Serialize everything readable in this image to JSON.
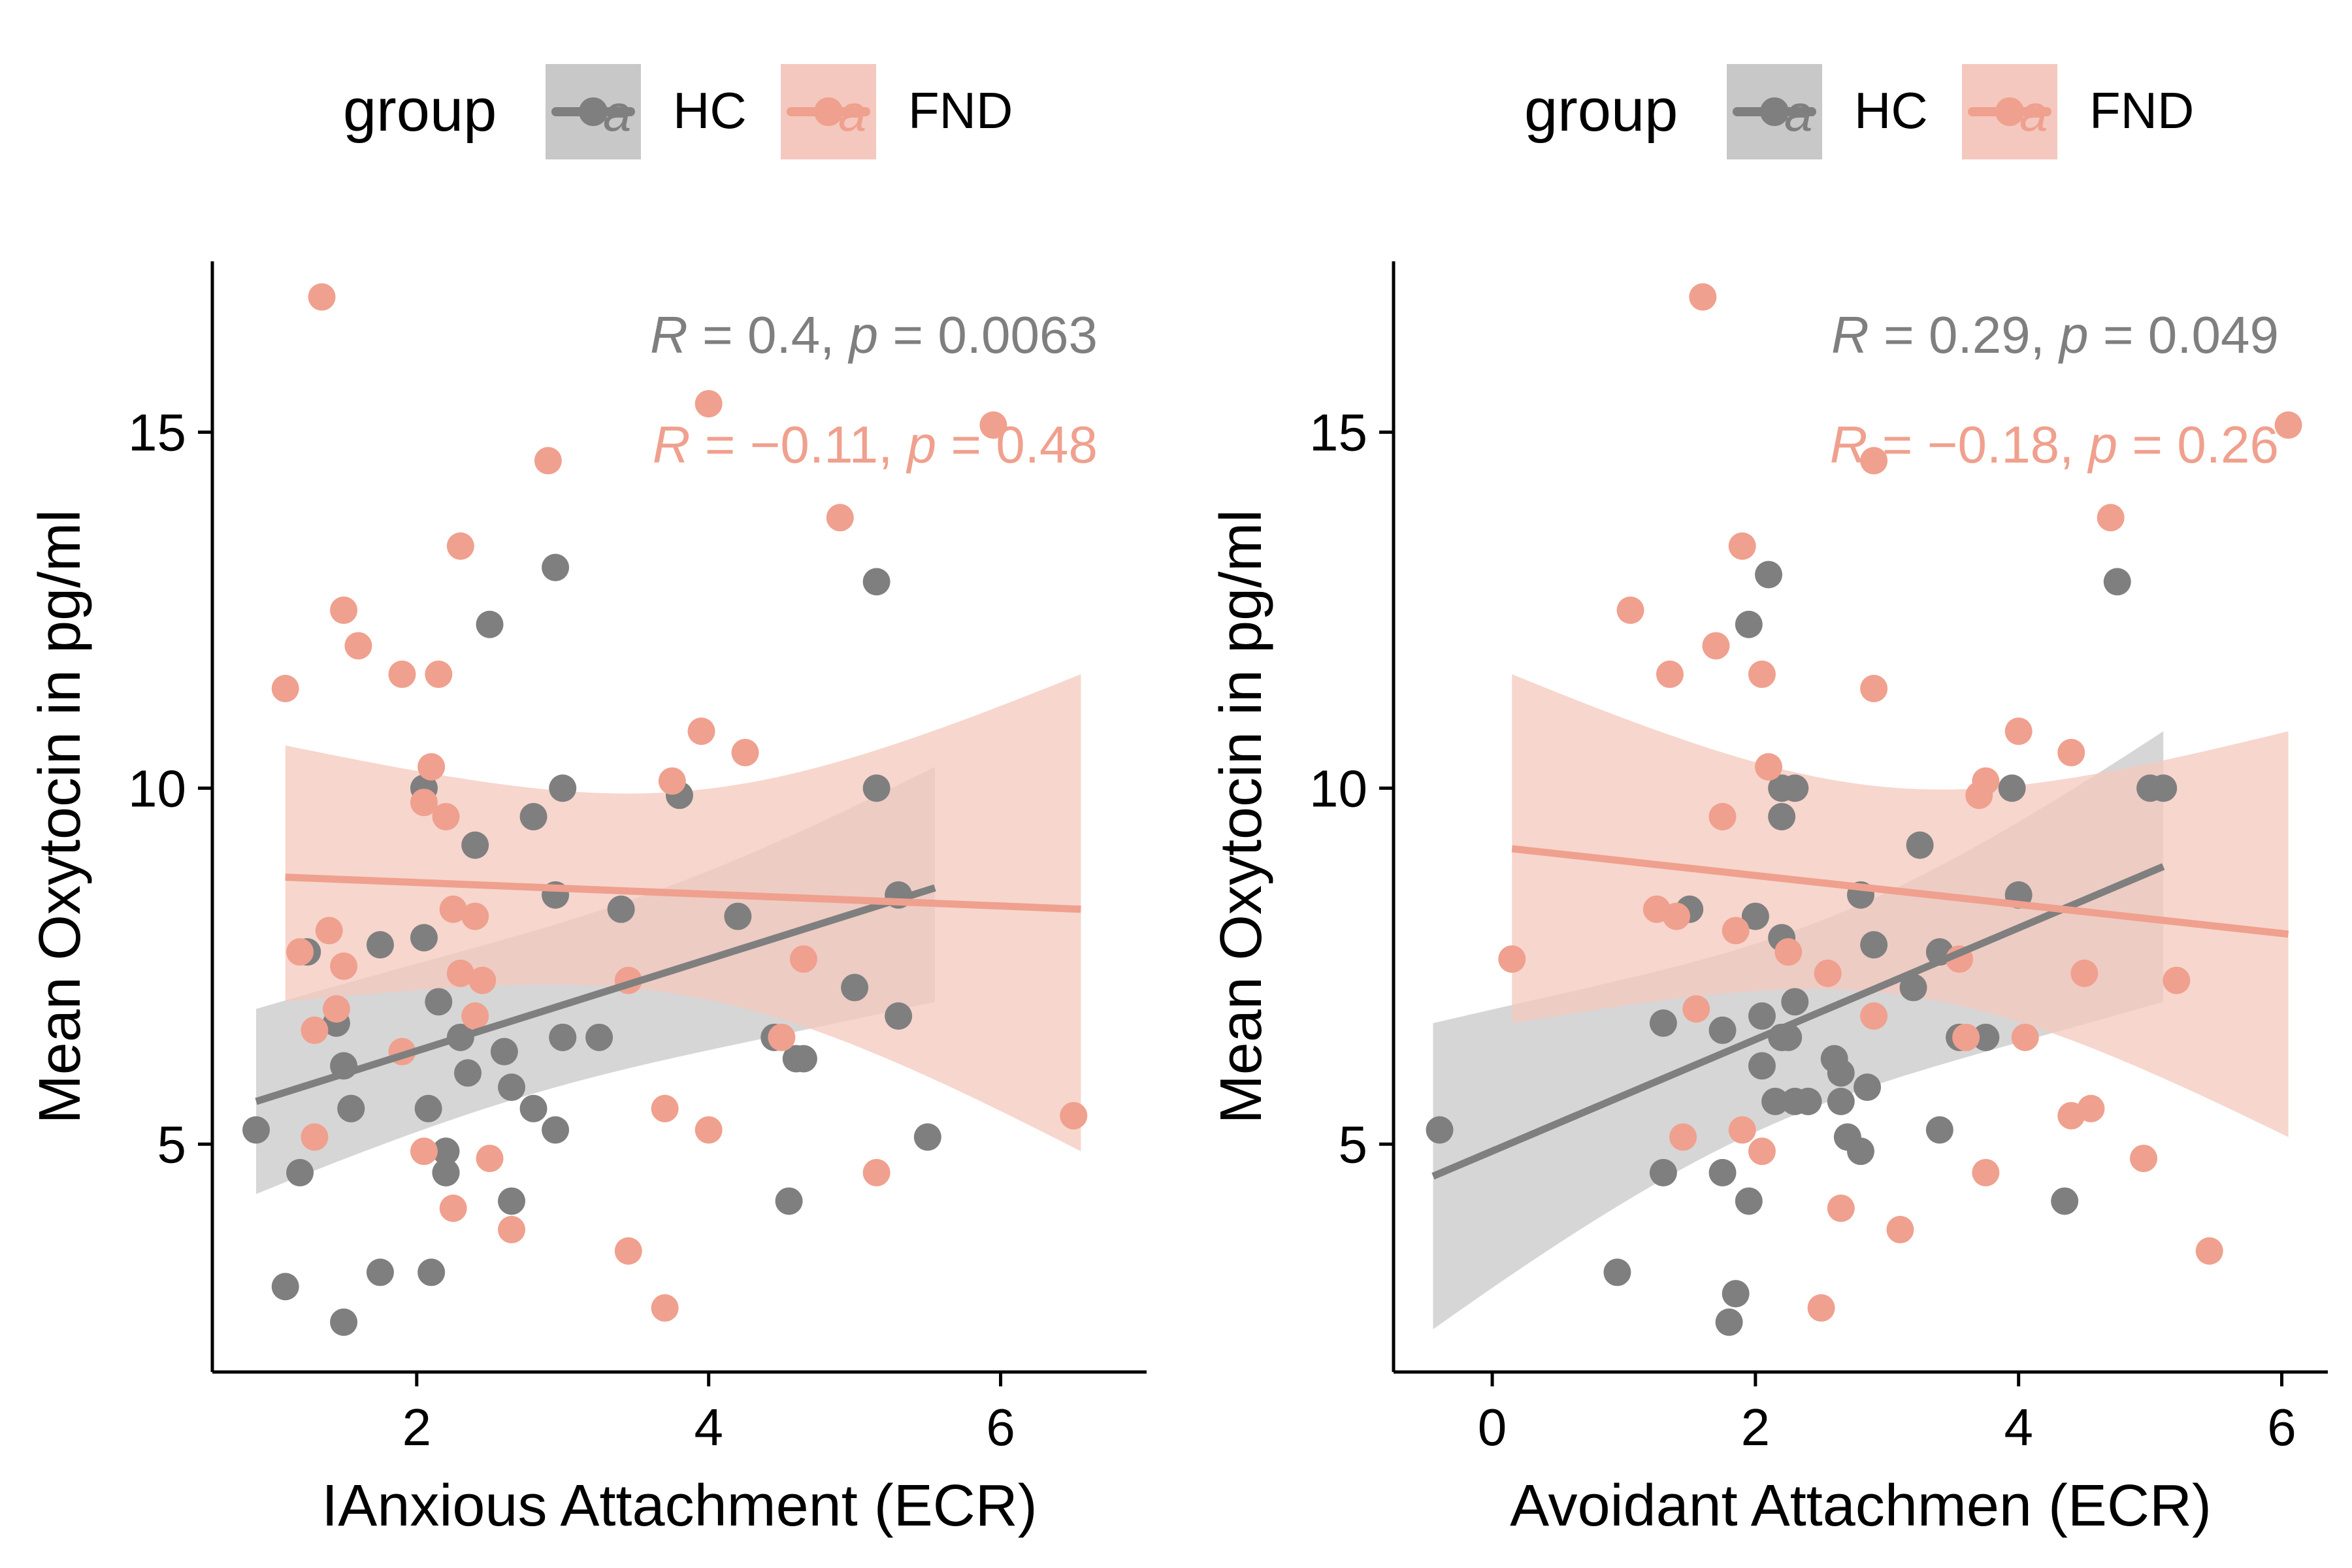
{
  "colors": {
    "HC": "#7f7f7f",
    "FND": "#f0a08e",
    "HC_band": "#c8c8c8",
    "FND_band": "#f4c8be"
  },
  "legend": {
    "title": "group",
    "key_glyph": "a",
    "items": [
      {
        "label": "HC",
        "group": "HC"
      },
      {
        "label": "FND",
        "group": "FND"
      }
    ]
  },
  "chart_data": [
    {
      "type": "scatter",
      "xlabel": "IAnxious Attachment (ECR)",
      "ylabel": "Mean Oxytocin in pg/ml",
      "xlim": [
        0.6,
        7.0
      ],
      "ylim": [
        1.8,
        17.4
      ],
      "xticks": [
        2,
        4,
        6
      ],
      "yticks": [
        5,
        10,
        15
      ],
      "grid": false,
      "legend_position": "top",
      "annotations": [
        {
          "group": "HC",
          "R": "0.4",
          "p": "0.0063"
        },
        {
          "group": "FND",
          "R": "−0.11",
          "p": "0.48"
        }
      ],
      "series": [
        {
          "name": "HC",
          "x": [
            0.9,
            1.1,
            1.2,
            1.25,
            1.5,
            1.55,
            1.45,
            1.5,
            1.55,
            1.75,
            1.75,
            2.05,
            2.05,
            2.08,
            2.1,
            2.15,
            2.2,
            2.2,
            2.2,
            2.3,
            2.35,
            2.4,
            2.5,
            2.6,
            2.65,
            2.65,
            2.8,
            2.8,
            2.95,
            2.95,
            2.95,
            3.0,
            3.0,
            3.0,
            3.25,
            3.4,
            3.8,
            4.2,
            4.45,
            4.55,
            4.6,
            4.65,
            5.0,
            5.15,
            5.15,
            5.3,
            5.3,
            5.5
          ],
          "y": [
            5.2,
            3.0,
            4.6,
            7.7,
            2.5,
            5.5,
            6.7,
            6.1,
            5.5,
            7.8,
            3.2,
            10.0,
            7.9,
            5.5,
            3.2,
            7.0,
            4.9,
            4.6,
            4.6,
            6.5,
            6.0,
            9.2,
            12.3,
            6.3,
            5.8,
            4.2,
            9.6,
            5.5,
            13.1,
            8.5,
            5.2,
            10.0,
            6.5,
            6.5,
            6.5,
            8.3,
            9.9,
            8.2,
            6.5,
            4.2,
            6.2,
            6.2,
            7.2,
            12.9,
            10.0,
            8.5,
            6.8,
            5.1
          ]
        },
        {
          "name": "FND",
          "x": [
            1.1,
            1.2,
            1.3,
            1.3,
            1.35,
            1.4,
            1.45,
            1.5,
            1.5,
            1.6,
            1.9,
            1.9,
            2.05,
            2.05,
            2.1,
            2.15,
            2.2,
            2.25,
            2.25,
            2.3,
            2.3,
            2.4,
            2.4,
            2.45,
            2.5,
            2.65,
            2.9,
            3.45,
            3.45,
            3.7,
            3.7,
            3.75,
            3.95,
            4.0,
            4.0,
            4.25,
            4.5,
            4.65,
            4.9,
            5.15,
            5.95,
            6.5
          ],
          "y": [
            11.4,
            7.7,
            6.6,
            5.1,
            16.9,
            8.0,
            6.9,
            7.5,
            12.5,
            12.0,
            11.6,
            6.3,
            9.8,
            4.9,
            10.3,
            11.6,
            9.6,
            8.3,
            4.1,
            7.4,
            13.4,
            8.2,
            6.8,
            7.3,
            4.8,
            3.8,
            14.6,
            7.3,
            3.5,
            5.5,
            2.7,
            10.1,
            10.8,
            5.2,
            15.4,
            10.5,
            6.5,
            7.6,
            13.8,
            4.6,
            15.1,
            5.4
          ]
        }
      ],
      "fits": [
        {
          "group": "HC",
          "x_range": [
            0.9,
            5.55
          ],
          "y_at_ends": [
            5.6,
            8.6
          ],
          "ci_lower": [
            4.3,
            7.0
          ],
          "ci_upper": [
            6.9,
            10.3
          ]
        },
        {
          "group": "FND",
          "x_range": [
            1.1,
            6.55
          ],
          "y_at_ends": [
            8.75,
            8.3
          ],
          "ci_lower": [
            7.0,
            4.9
          ],
          "ci_upper": [
            10.6,
            11.6
          ]
        }
      ]
    },
    {
      "type": "scatter",
      "xlabel": "Avoidant Attachmen (ECR)",
      "ylabel": "Mean Oxytocin in pg/ml",
      "xlim": [
        -0.75,
        6.35
      ],
      "ylim": [
        1.8,
        17.4
      ],
      "xticks": [
        0,
        2,
        4,
        6
      ],
      "yticks": [
        5,
        10,
        15
      ],
      "grid": false,
      "legend_position": "top",
      "annotations": [
        {
          "group": "HC",
          "R": "0.29",
          "p": "0.049"
        },
        {
          "group": "FND",
          "R": "−0.18",
          "p": "0.26"
        }
      ],
      "series": [
        {
          "name": "HC",
          "x": [
            -0.4,
            0.95,
            1.3,
            1.3,
            1.5,
            1.75,
            1.75,
            1.8,
            1.85,
            1.95,
            1.95,
            2.0,
            2.05,
            2.05,
            2.1,
            2.15,
            2.2,
            2.2,
            2.2,
            2.2,
            2.25,
            2.3,
            2.3,
            2.3,
            2.4,
            2.4,
            2.6,
            2.65,
            2.65,
            2.7,
            2.8,
            2.8,
            2.85,
            2.9,
            3.2,
            3.25,
            3.4,
            3.4,
            3.55,
            3.75,
            3.95,
            4.0,
            4.35,
            4.75,
            5.0,
            5.1
          ],
          "y": [
            5.2,
            3.2,
            6.7,
            4.6,
            8.3,
            6.6,
            4.6,
            2.5,
            2.9,
            12.3,
            4.2,
            8.2,
            6.8,
            6.1,
            13.0,
            5.6,
            10.0,
            7.9,
            9.6,
            6.5,
            6.5,
            10.0,
            5.6,
            7.0,
            5.6,
            5.6,
            6.2,
            6.0,
            5.6,
            5.1,
            8.5,
            4.9,
            5.8,
            7.8,
            7.2,
            9.2,
            5.2,
            7.7,
            6.5,
            6.5,
            10.0,
            8.5,
            4.2,
            12.9,
            10.0,
            10.0
          ],
          "_note": ""
        },
        {
          "name": "FND",
          "x": [
            0.15,
            1.05,
            1.25,
            1.35,
            1.4,
            1.45,
            1.55,
            1.6,
            1.7,
            1.75,
            1.85,
            1.9,
            1.9,
            2.05,
            2.05,
            2.1,
            2.25,
            2.5,
            2.55,
            2.65,
            2.9,
            2.9,
            2.9,
            3.1,
            3.55,
            3.6,
            3.7,
            3.75,
            3.75,
            4.0,
            4.05,
            4.4,
            4.4,
            4.5,
            4.55,
            4.7,
            4.95,
            5.2,
            5.45,
            6.05
          ],
          "y": [
            7.6,
            12.5,
            8.3,
            11.6,
            8.2,
            5.1,
            6.9,
            16.9,
            12.0,
            9.6,
            8.0,
            13.4,
            5.2,
            11.6,
            4.9,
            10.3,
            7.7,
            2.7,
            7.4,
            4.1,
            14.6,
            11.4,
            6.8,
            3.8,
            7.6,
            6.5,
            9.9,
            10.1,
            4.6,
            10.8,
            6.5,
            10.5,
            5.4,
            7.4,
            5.5,
            13.8,
            4.8,
            7.3,
            3.5,
            15.1
          ]
        }
      ],
      "fits": [
        {
          "group": "HC",
          "x_range": [
            -0.45,
            5.1
          ],
          "y_at_ends": [
            4.55,
            8.9
          ],
          "ci_lower": [
            2.4,
            7.0
          ],
          "ci_upper": [
            6.7,
            10.8
          ]
        },
        {
          "group": "FND",
          "x_range": [
            0.15,
            6.05
          ],
          "y_at_ends": [
            9.15,
            7.95
          ],
          "ci_lower": [
            6.7,
            5.1
          ],
          "ci_upper": [
            11.6,
            10.8
          ]
        }
      ]
    }
  ]
}
